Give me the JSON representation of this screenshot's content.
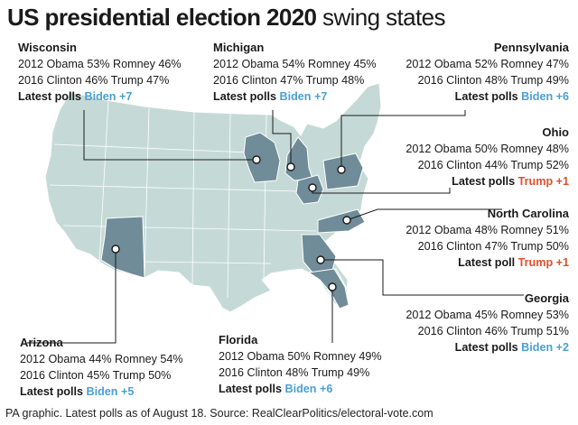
{
  "title": {
    "bold": "US presidential election 2020",
    "light": "swing states"
  },
  "colors": {
    "land": "#c5dad6",
    "swing": "#6f8c98",
    "border": "#ffffff",
    "dem": "#4a9fd6",
    "rep": "#e0502a"
  },
  "states": [
    {
      "id": "wisconsin",
      "name": "Wisconsin",
      "line2012": "2012 Obama 53% Romney 46%",
      "line2016": "2016 Clinton 46% Trump 47%",
      "poll_label": "Latest polls",
      "poll_value": "Biden +7",
      "leader": "dem"
    },
    {
      "id": "michigan",
      "name": "Michigan",
      "line2012": "2012 Obama 54% Romney 45%",
      "line2016": "2016 Clinton 47% Trump 48%",
      "poll_label": "Latest polls",
      "poll_value": "Biden +7",
      "leader": "dem"
    },
    {
      "id": "pennsylvania",
      "name": "Pennsylvania",
      "line2012": "2012 Obama 52% Romney 47%",
      "line2016": "2016 Clinton 48% Trump 49%",
      "poll_label": "Latest polls",
      "poll_value": "Biden +6",
      "leader": "dem"
    },
    {
      "id": "ohio",
      "name": "Ohio",
      "line2012": "2012 Obama 50% Romney 48%",
      "line2016": "2016 Clinton 44% Trump 52%",
      "poll_label": "Latest polls",
      "poll_value": "Trump +1",
      "leader": "rep"
    },
    {
      "id": "north-carolina",
      "name": "North Carolina",
      "line2012": "2012 Obama 48% Romney 51%",
      "line2016": "2016 Clinton 47% Trump 50%",
      "poll_label": "Latest poll",
      "poll_value": "Trump +1",
      "leader": "rep"
    },
    {
      "id": "georgia",
      "name": "Georgia",
      "line2012": "2012 Obama 45% Romney 53%",
      "line2016": "2016 Clinton 46% Trump 51%",
      "poll_label": "Latest polls",
      "poll_value": "Biden +2",
      "leader": "dem"
    },
    {
      "id": "florida",
      "name": "Florida",
      "line2012": "2012 Obama 50% Romney 49%",
      "line2016": "2016 Clinton 48% Trump 49%",
      "poll_label": "Latest polls",
      "poll_value": "Biden +6",
      "leader": "dem"
    },
    {
      "id": "arizona",
      "name": "Arizona",
      "line2012": "2012 Obama 44% Romney 54%",
      "line2016": "2016 Clinton 45% Trump 50%",
      "poll_label": "Latest polls",
      "poll_value": "Biden +5",
      "leader": "dem"
    }
  ],
  "source": "PA graphic. Latest polls as of August 18. Source: RealClearPolitics/electoral-vote.com"
}
